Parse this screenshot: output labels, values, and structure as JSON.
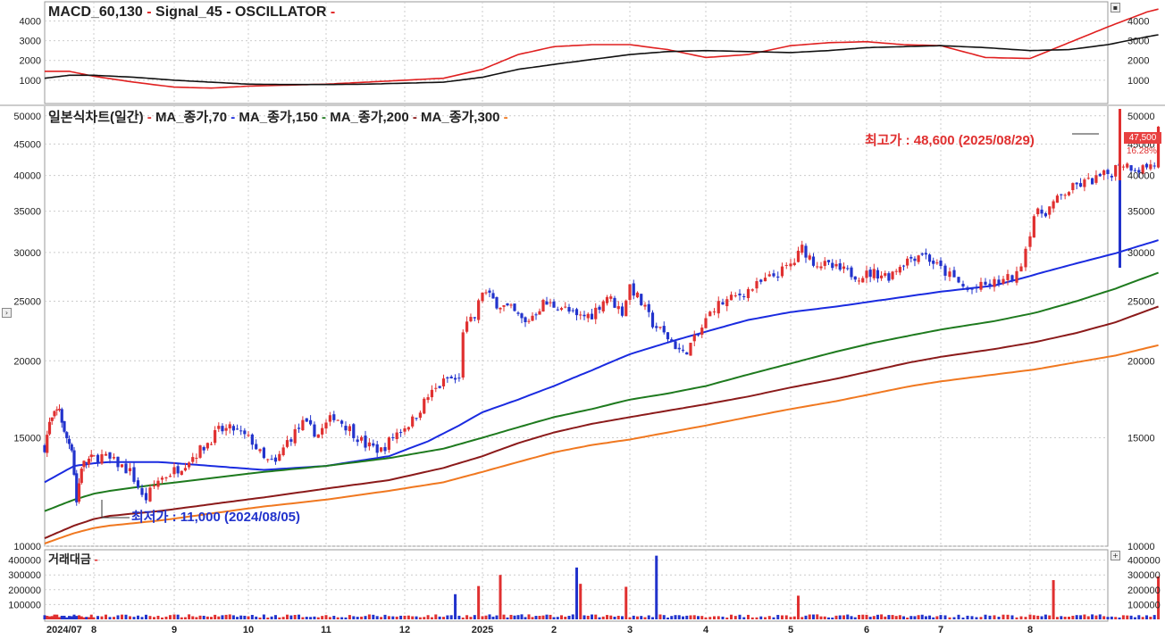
{
  "colors": {
    "up": "#e03030",
    "down": "#2233cc",
    "macd_line": "#e02020",
    "signal_line": "#111111",
    "ma70": "#1a2be0",
    "ma150": "#1e7a1e",
    "ma200": "#8b1a1a",
    "ma300": "#f07820",
    "grid": "#cccccc"
  },
  "macd_panel": {
    "title_parts": [
      {
        "text": "MACD_60,130",
        "color": "#222222"
      },
      {
        "text": " - ",
        "color": "#e02020"
      },
      {
        "text": "Signal_45",
        "color": "#222222"
      },
      {
        "text": " - ",
        "color": "#111111"
      },
      {
        "text": "OSCILLATOR",
        "color": "#222222"
      },
      {
        "text": " -",
        "color": "#e02020"
      }
    ],
    "y_ticks": [
      "4000",
      "3000",
      "2000",
      "1000"
    ],
    "y_tick_values": [
      4000,
      3000,
      2000,
      1000
    ],
    "ylim": [
      0,
      4700
    ]
  },
  "candle_panel": {
    "title_parts": [
      {
        "text": "일본식차트(일간)",
        "color": "#222222"
      },
      {
        "text": " - ",
        "color": "#e03030"
      },
      {
        "text": "MA_종가,70",
        "color": "#222222"
      },
      {
        "text": " - ",
        "color": "#1a2be0"
      },
      {
        "text": "MA_종가,150",
        "color": "#222222"
      },
      {
        "text": " - ",
        "color": "#1e7a1e"
      },
      {
        "text": "MA_종가,200",
        "color": "#222222"
      },
      {
        "text": " - ",
        "color": "#8b1a1a"
      },
      {
        "text": "MA_종가,300",
        "color": "#222222"
      },
      {
        "text": " -",
        "color": "#f07820"
      }
    ],
    "y_ticks": [
      "50000",
      "45000",
      "40000",
      "35000",
      "30000",
      "25000",
      "20000",
      "15000",
      "10000"
    ],
    "y_tick_values": [
      50000,
      45000,
      40000,
      35000,
      30000,
      25000,
      20000,
      15000,
      10000
    ],
    "ylim": [
      10000,
      52000
    ],
    "scale": "log",
    "high_annotation": "최고가 : 48,600 (2025/08/29)",
    "low_annotation": "최저가 : 11,000 (2024/08/05)",
    "current_price_tag": "47,500",
    "change_pct_tag": "16.28%"
  },
  "volume_panel": {
    "title": "거래대금",
    "title_dash": " -",
    "y_ticks": [
      "400000",
      "300000",
      "200000",
      "100000"
    ],
    "y_tick_values": [
      400000,
      300000,
      200000,
      100000
    ],
    "ylim": [
      0,
      470000
    ]
  },
  "x_axis": {
    "labels": [
      "2024/07",
      "8",
      "9",
      "10",
      "11",
      "12",
      "2025",
      "2",
      "3",
      "4",
      "5",
      "6",
      "7",
      "8"
    ]
  },
  "chart_data": {
    "type": "candlestick",
    "scale": "log",
    "months": [
      "2024/07",
      "8",
      "9",
      "10",
      "11",
      "12",
      "2025",
      "2",
      "3",
      "4",
      "5",
      "6",
      "7",
      "8"
    ],
    "price_path": [
      [
        0,
        14500
      ],
      [
        0.1,
        15800
      ],
      [
        0.3,
        16800
      ],
      [
        0.4,
        15200
      ],
      [
        0.55,
        14500
      ],
      [
        0.65,
        11800
      ],
      [
        0.75,
        13500
      ],
      [
        0.9,
        13800
      ],
      [
        1.1,
        14000
      ],
      [
        1.3,
        13600
      ],
      [
        1.45,
        13200
      ],
      [
        1.55,
        12500
      ],
      [
        1.62,
        11800
      ],
      [
        1.8,
        12800
      ],
      [
        2.1,
        13500
      ],
      [
        2.4,
        14500
      ],
      [
        2.6,
        15400
      ],
      [
        2.8,
        15500
      ],
      [
        3.05,
        14800
      ],
      [
        3.2,
        13800
      ],
      [
        3.35,
        13600
      ],
      [
        3.5,
        14800
      ],
      [
        3.7,
        15800
      ],
      [
        3.9,
        15200
      ],
      [
        4.1,
        16300
      ],
      [
        4.3,
        15500
      ],
      [
        4.5,
        14600
      ],
      [
        4.7,
        14300
      ],
      [
        4.9,
        15300
      ],
      [
        5.1,
        16000
      ],
      [
        5.3,
        17500
      ],
      [
        5.55,
        18700
      ],
      [
        5.7,
        18600
      ],
      [
        5.75,
        22500
      ],
      [
        5.9,
        23500
      ],
      [
        6.0,
        26000
      ],
      [
        6.2,
        24800
      ],
      [
        6.4,
        24200
      ],
      [
        6.6,
        23000
      ],
      [
        6.85,
        24800
      ],
      [
        7.1,
        24500
      ],
      [
        7.3,
        23500
      ],
      [
        7.5,
        23800
      ],
      [
        7.7,
        25500
      ],
      [
        7.9,
        24000
      ],
      [
        8.0,
        26500
      ],
      [
        8.15,
        24800
      ],
      [
        8.3,
        23000
      ],
      [
        8.55,
        21500
      ],
      [
        8.7,
        20500
      ],
      [
        8.9,
        22000
      ],
      [
        9.1,
        24500
      ],
      [
        9.3,
        25200
      ],
      [
        9.6,
        26500
      ],
      [
        9.9,
        28000
      ],
      [
        10.05,
        29000
      ],
      [
        10.15,
        30500
      ],
      [
        10.3,
        29000
      ],
      [
        10.6,
        28200
      ],
      [
        10.9,
        27500
      ],
      [
        11.1,
        27800
      ],
      [
        11.3,
        27500
      ],
      [
        11.5,
        29000
      ],
      [
        11.75,
        30000
      ],
      [
        11.95,
        28500
      ],
      [
        12.1,
        27500
      ],
      [
        12.3,
        26000
      ],
      [
        12.5,
        26500
      ],
      [
        12.7,
        27000
      ],
      [
        12.85,
        27500
      ],
      [
        12.95,
        30500
      ],
      [
        13.05,
        34500
      ],
      [
        13.2,
        35000
      ],
      [
        13.45,
        37500
      ],
      [
        13.6,
        38500
      ],
      [
        13.85,
        39500
      ],
      [
        14.05,
        40500
      ],
      [
        14.15,
        42000
      ],
      [
        14.4,
        41000
      ],
      [
        14.6,
        41800
      ],
      [
        14.65,
        47500
      ]
    ],
    "moving_averages": [
      {
        "name": "MA_종가,70",
        "color": "#1a2be0",
        "path": [
          [
            0,
            12700
          ],
          [
            0.6,
            13500
          ],
          [
            1.2,
            13700
          ],
          [
            1.8,
            13700
          ],
          [
            2.5,
            13500
          ],
          [
            3.2,
            13300
          ],
          [
            4.0,
            13500
          ],
          [
            4.8,
            14000
          ],
          [
            5.3,
            14800
          ],
          [
            5.7,
            15700
          ],
          [
            6.0,
            16500
          ],
          [
            6.5,
            17300
          ],
          [
            7.0,
            18200
          ],
          [
            7.5,
            19300
          ],
          [
            8.0,
            20500
          ],
          [
            8.6,
            21600
          ],
          [
            9.0,
            22300
          ],
          [
            9.5,
            23300
          ],
          [
            10.0,
            24000
          ],
          [
            10.6,
            24500
          ],
          [
            11.1,
            25000
          ],
          [
            11.6,
            25500
          ],
          [
            12.1,
            26000
          ],
          [
            12.6,
            26500
          ],
          [
            13.1,
            27700
          ],
          [
            13.6,
            28800
          ],
          [
            14.1,
            29900
          ],
          [
            14.65,
            31400
          ]
        ]
      },
      {
        "name": "MA_종가,150",
        "color": "#1e7a1e",
        "path": [
          [
            0,
            11400
          ],
          [
            0.6,
            11900
          ],
          [
            1.2,
            12300
          ],
          [
            1.8,
            12600
          ],
          [
            2.5,
            12900
          ],
          [
            3.2,
            13200
          ],
          [
            4.0,
            13500
          ],
          [
            4.8,
            13900
          ],
          [
            5.5,
            14400
          ],
          [
            6.0,
            15000
          ],
          [
            6.5,
            15600
          ],
          [
            7.0,
            16200
          ],
          [
            7.5,
            16700
          ],
          [
            8.0,
            17300
          ],
          [
            8.5,
            17700
          ],
          [
            9.0,
            18200
          ],
          [
            9.5,
            19000
          ],
          [
            10.0,
            19800
          ],
          [
            10.6,
            20700
          ],
          [
            11.1,
            21400
          ],
          [
            11.6,
            22000
          ],
          [
            12.1,
            22600
          ],
          [
            12.6,
            23200
          ],
          [
            13.1,
            24000
          ],
          [
            13.6,
            25000
          ],
          [
            14.1,
            26200
          ],
          [
            14.65,
            27800
          ]
        ]
      },
      {
        "name": "MA_종가,200",
        "color": "#8b1a1a",
        "path": [
          [
            0,
            10300
          ],
          [
            0.6,
            10800
          ],
          [
            1.2,
            11200
          ],
          [
            1.8,
            11400
          ],
          [
            2.5,
            11700
          ],
          [
            3.2,
            12000
          ],
          [
            4.0,
            12400
          ],
          [
            4.8,
            12800
          ],
          [
            5.5,
            13400
          ],
          [
            6.0,
            14000
          ],
          [
            6.5,
            14700
          ],
          [
            7.0,
            15300
          ],
          [
            7.5,
            15800
          ],
          [
            8.0,
            16200
          ],
          [
            8.5,
            16600
          ],
          [
            9.0,
            17000
          ],
          [
            9.5,
            17500
          ],
          [
            10.0,
            18100
          ],
          [
            10.6,
            18700
          ],
          [
            11.1,
            19300
          ],
          [
            11.6,
            19900
          ],
          [
            12.1,
            20400
          ],
          [
            12.6,
            20900
          ],
          [
            13.1,
            21500
          ],
          [
            13.6,
            22200
          ],
          [
            14.1,
            23100
          ],
          [
            14.65,
            24500
          ]
        ]
      },
      {
        "name": "MA_종가,300",
        "color": "#f07820",
        "path": [
          [
            0,
            10100
          ],
          [
            0.6,
            10500
          ],
          [
            1.2,
            10800
          ],
          [
            1.8,
            11000
          ],
          [
            2.5,
            11300
          ],
          [
            3.2,
            11600
          ],
          [
            4.0,
            11900
          ],
          [
            4.8,
            12300
          ],
          [
            5.5,
            12700
          ],
          [
            6.0,
            13200
          ],
          [
            6.5,
            13700
          ],
          [
            7.0,
            14200
          ],
          [
            7.5,
            14600
          ],
          [
            8.0,
            14900
          ],
          [
            8.5,
            15300
          ],
          [
            9.0,
            15700
          ],
          [
            9.5,
            16200
          ],
          [
            10.0,
            16700
          ],
          [
            10.6,
            17200
          ],
          [
            11.1,
            17700
          ],
          [
            11.6,
            18200
          ],
          [
            12.1,
            18600
          ],
          [
            12.6,
            19000
          ],
          [
            13.1,
            19400
          ],
          [
            13.6,
            19900
          ],
          [
            14.1,
            20400
          ],
          [
            14.65,
            21200
          ]
        ]
      }
    ],
    "macd": [
      [
        0,
        1100
      ],
      [
        0.5,
        1250
      ],
      [
        1.0,
        1250
      ],
      [
        1.5,
        1150
      ],
      [
        2.0,
        1000
      ],
      [
        2.5,
        900
      ],
      [
        3.0,
        800
      ],
      [
        3.5,
        780
      ],
      [
        4.0,
        780
      ],
      [
        4.5,
        800
      ],
      [
        5.0,
        850
      ],
      [
        5.5,
        900
      ],
      [
        6.0,
        1150
      ],
      [
        6.5,
        1550
      ],
      [
        7.0,
        1800
      ],
      [
        7.5,
        2050
      ],
      [
        8.0,
        2300
      ],
      [
        8.5,
        2450
      ],
      [
        9.0,
        2500
      ],
      [
        9.5,
        2450
      ],
      [
        10.0,
        2400
      ],
      [
        10.5,
        2500
      ],
      [
        11.0,
        2650
      ],
      [
        11.5,
        2700
      ],
      [
        12.0,
        2750
      ],
      [
        12.5,
        2650
      ],
      [
        13.0,
        2500
      ],
      [
        13.5,
        2550
      ],
      [
        14.0,
        2800
      ],
      [
        14.5,
        3200
      ],
      [
        14.65,
        3300
      ]
    ],
    "signal": [
      [
        0,
        1450
      ],
      [
        0.5,
        1450
      ],
      [
        1.0,
        1200
      ],
      [
        1.5,
        900
      ],
      [
        2.0,
        650
      ],
      [
        2.5,
        600
      ],
      [
        3.0,
        700
      ],
      [
        3.5,
        750
      ],
      [
        4.0,
        800
      ],
      [
        4.5,
        900
      ],
      [
        5.0,
        1000
      ],
      [
        5.5,
        1100
      ],
      [
        6.0,
        1550
      ],
      [
        6.5,
        2300
      ],
      [
        7.0,
        2700
      ],
      [
        7.5,
        2800
      ],
      [
        8.0,
        2800
      ],
      [
        8.5,
        2550
      ],
      [
        9.0,
        2150
      ],
      [
        9.5,
        2300
      ],
      [
        10.0,
        2750
      ],
      [
        10.5,
        2900
      ],
      [
        11.0,
        2950
      ],
      [
        11.5,
        2800
      ],
      [
        12.0,
        2750
      ],
      [
        12.5,
        2150
      ],
      [
        13.0,
        2100
      ],
      [
        13.5,
        2900
      ],
      [
        14.0,
        3700
      ],
      [
        14.5,
        4450
      ],
      [
        14.65,
        4600
      ]
    ],
    "volume_peaks": [
      {
        "month_pos": 5.65,
        "value": 170000,
        "up": true
      },
      {
        "month_pos": 5.95,
        "value": 225000,
        "up": true
      },
      {
        "month_pos": 6.25,
        "value": 300000,
        "up": true
      },
      {
        "month_pos": 7.3,
        "value": 350000,
        "up": true
      },
      {
        "month_pos": 7.35,
        "value": 240000,
        "up": false
      },
      {
        "month_pos": 7.95,
        "value": 220000,
        "up": true
      },
      {
        "month_pos": 8.35,
        "value": 430000,
        "up": true
      },
      {
        "month_pos": 10.1,
        "value": 160000,
        "up": true
      },
      {
        "month_pos": 13.3,
        "value": 265000,
        "up": true
      },
      {
        "month_pos": 14.65,
        "value": 290000,
        "up": true
      }
    ]
  }
}
